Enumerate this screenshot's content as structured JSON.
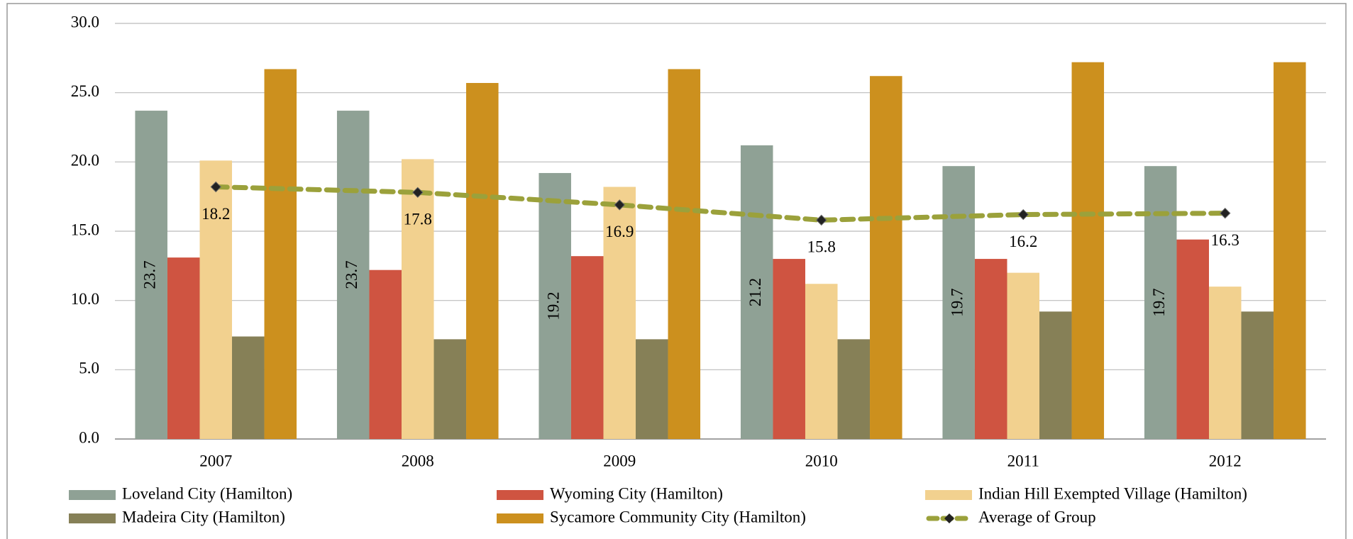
{
  "chart_data": {
    "type": "bar",
    "categories": [
      "2007",
      "2008",
      "2009",
      "2010",
      "2011",
      "2012"
    ],
    "series": [
      {
        "name": "Loveland City (Hamilton)",
        "color": "#8fa195",
        "values": [
          23.7,
          23.7,
          19.2,
          21.2,
          19.7,
          19.7
        ],
        "data_labels": true
      },
      {
        "name": "Wyoming City (Hamilton)",
        "color": "#cf5441",
        "values": [
          13.1,
          12.2,
          13.2,
          13.0,
          13.0,
          14.4
        ]
      },
      {
        "name": "Indian Hill Exempted Village (Hamilton)",
        "color": "#f2d18f",
        "values": [
          20.1,
          20.2,
          18.2,
          11.2,
          12.0,
          11.0
        ]
      },
      {
        "name": "Madeira City (Hamilton)",
        "color": "#868057",
        "values": [
          7.4,
          7.2,
          7.2,
          7.2,
          9.2,
          9.2
        ]
      },
      {
        "name": "Sycamore Community City (Hamilton)",
        "color": "#cc901e",
        "values": [
          26.7,
          25.7,
          26.7,
          26.2,
          27.2,
          27.2
        ]
      },
      {
        "name": "Average of Group",
        "color": "#9ba13b",
        "type": "line",
        "values": [
          18.2,
          17.8,
          16.9,
          15.8,
          16.2,
          16.3
        ],
        "data_labels": true
      }
    ],
    "ylim": [
      0,
      30
    ],
    "yticks": [
      {
        "value": 0,
        "label": "0.0"
      },
      {
        "value": 5,
        "label": "5.0"
      },
      {
        "value": 10,
        "label": "10.0"
      },
      {
        "value": 15,
        "label": "15.0"
      },
      {
        "value": 20,
        "label": "20.0"
      },
      {
        "value": 25,
        "label": "25.0"
      },
      {
        "value": 30,
        "label": "30.0"
      }
    ],
    "grid": true,
    "legend": "bottom"
  }
}
